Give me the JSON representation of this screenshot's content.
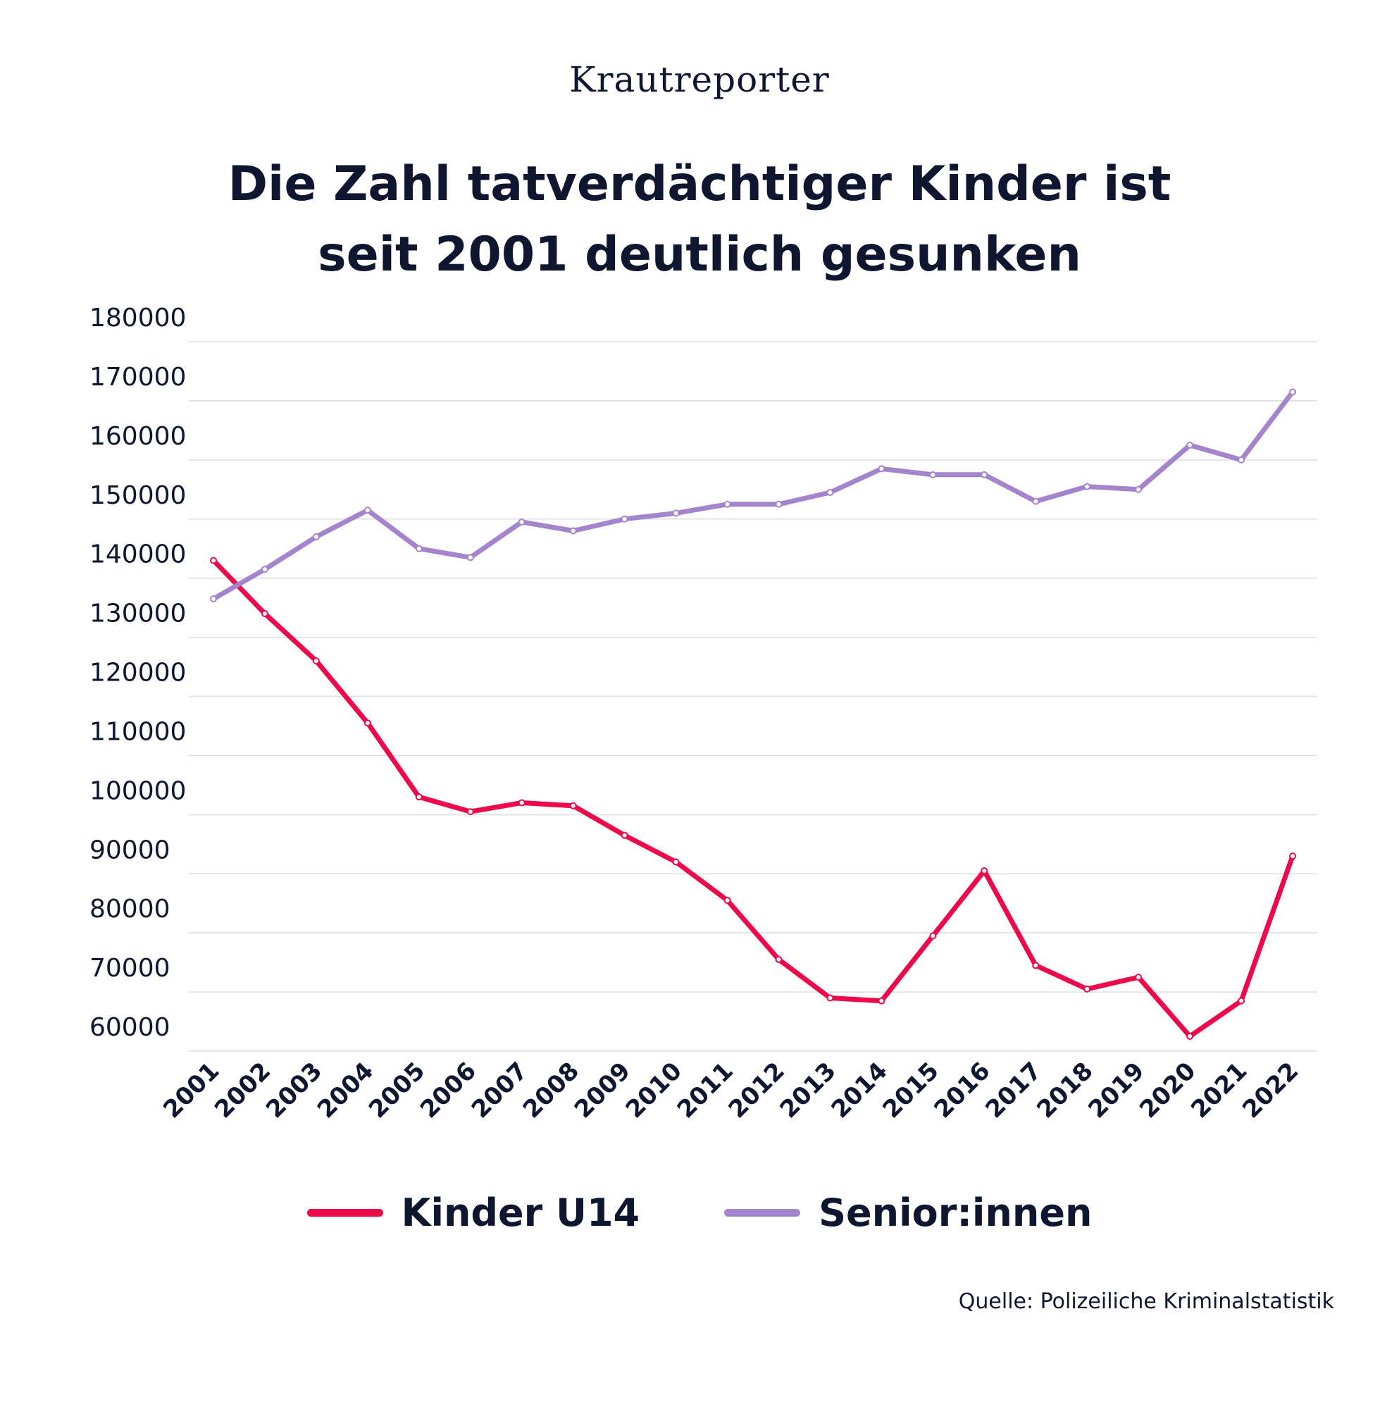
{
  "brand": "Krautreporter",
  "title_lines": [
    "Die Zahl tatverdächtiger Kinder ist",
    "seit 2001 deutlich gesunken"
  ],
  "source": "Quelle: Polizeiliche Kriminalstatistik",
  "colors": {
    "text": "#0e1630",
    "grid": "#dedede",
    "kinder": "#ee0a4a",
    "senioren": "#a484cc"
  },
  "chart_data": {
    "type": "line",
    "title": "Die Zahl tatverdächtiger Kinder ist seit 2001 deutlich gesunken",
    "xlabel": "",
    "ylabel": "",
    "ylim": [
      60000,
      180000
    ],
    "yticks": [
      "180000",
      "170000",
      "160000",
      "150000",
      "140000",
      "130000",
      "120000",
      "110000",
      "100000",
      "90000",
      "80000",
      "70000",
      "60000"
    ],
    "categories": [
      "2001",
      "2002",
      "2003",
      "2004",
      "2005",
      "2006",
      "2007",
      "2008",
      "2009",
      "2010",
      "2011",
      "2012",
      "2013",
      "2014",
      "2015",
      "2016",
      "2017",
      "2018",
      "2019",
      "2020",
      "2021",
      "2022"
    ],
    "series": [
      {
        "name": "Kinder U14",
        "values": [
          143000,
          134000,
          126000,
          115500,
          103000,
          100500,
          102000,
          101500,
          96500,
          92000,
          85500,
          75500,
          69000,
          68500,
          79500,
          90500,
          74500,
          70500,
          72500,
          62500,
          68500,
          93000
        ]
      },
      {
        "name": "Senior:innen",
        "values": [
          136500,
          141500,
          147000,
          151500,
          145000,
          143500,
          149500,
          148000,
          150000,
          151000,
          152500,
          152500,
          154500,
          158500,
          157500,
          157500,
          153000,
          155500,
          155000,
          162500,
          160000,
          171500
        ]
      }
    ],
    "legend": "bottom-center",
    "grid": true
  }
}
